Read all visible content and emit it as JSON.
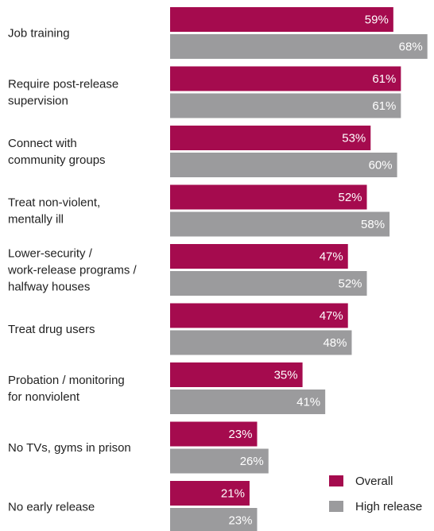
{
  "chart_data": {
    "type": "bar",
    "orientation": "horizontal",
    "categories": [
      [
        "Job training"
      ],
      [
        "Require post-release",
        "supervision"
      ],
      [
        "Connect with",
        "community groups"
      ],
      [
        "Treat non-violent,",
        "mentally ill"
      ],
      [
        "Lower-security /",
        "work-release programs /",
        "halfway houses"
      ],
      [
        "Treat drug users"
      ],
      [
        "Probation / monitoring",
        "for nonviolent"
      ],
      [
        "No TVs, gyms in prison"
      ],
      [
        "No early release"
      ]
    ],
    "series": [
      {
        "name": "Overall",
        "color": "#a50b4e",
        "values": [
          59,
          61,
          53,
          52,
          47,
          47,
          35,
          23,
          21
        ],
        "labels": [
          "59%",
          "61%",
          "53%",
          "52%",
          "47%",
          "47%",
          "35%",
          "23%",
          "21%"
        ]
      },
      {
        "name": "High release",
        "color": "#9b9b9d",
        "values": [
          68,
          61,
          60,
          58,
          52,
          48,
          41,
          26,
          23
        ],
        "labels": [
          "68%",
          "61%",
          "60%",
          "58%",
          "52%",
          "48%",
          "41%",
          "26%",
          "23%"
        ]
      }
    ],
    "xlim": [
      0,
      68
    ],
    "grid": false,
    "legend_position": "bottom-right"
  }
}
